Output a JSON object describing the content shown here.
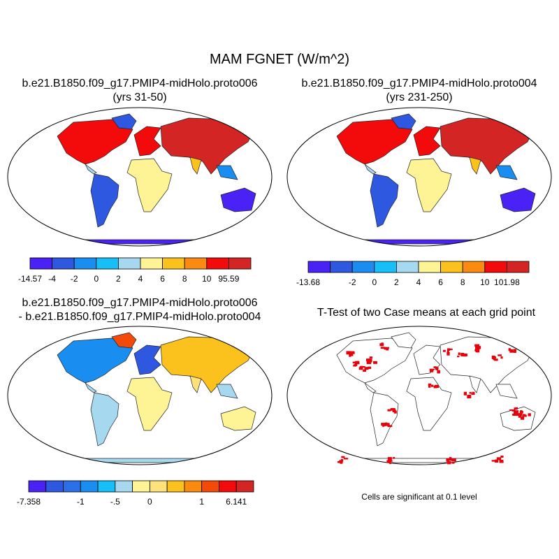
{
  "figure": {
    "title": "MAM FGNET (W/m^2)"
  },
  "panels": [
    {
      "id": "case1",
      "title_line1": "b.e21.B1850.f09_g17.PMIP4-midHolo.proto006",
      "title_line2": "(yrs 31-50)",
      "colorbar": {
        "colors": [
          "#4a22f5",
          "#2e58e0",
          "#1a8ef0",
          "#16bff7",
          "#a6d8f0",
          "#fef496",
          "#fbc21e",
          "#fa8a10",
          "#f30a0a",
          "#d42525"
        ],
        "labels": [
          "-14.57",
          "-4",
          "-2",
          "0",
          "2",
          "4",
          "6",
          "8",
          "10",
          "95.59"
        ]
      }
    },
    {
      "id": "case2",
      "title_line1": "b.e21.B1850.f09_g17.PMIP4-midHolo.proto004",
      "title_line2": "(yrs 231-250)",
      "colorbar": {
        "colors": [
          "#4a22f5",
          "#2e58e0",
          "#1a8ef0",
          "#16bff7",
          "#a6d8f0",
          "#fef496",
          "#fbc21e",
          "#fa8a10",
          "#f30a0a",
          "#d42525"
        ],
        "labels": [
          "-13.68",
          "",
          "-2",
          "0",
          "2",
          "4",
          "6",
          "8",
          "10",
          "101.98"
        ]
      }
    },
    {
      "id": "difference",
      "title_line1": "b.e21.B1850.f09_g17.PMIP4-midHolo.proto006",
      "title_line2": "- b.e21.B1850.f09_g17.PMIP4-midHolo.proto004",
      "colorbar": {
        "colors": [
          "#4a22f5",
          "#2e58e0",
          "#2a6fe8",
          "#1a8ef0",
          "#16bff7",
          "#a6d8f0",
          "#fef496",
          "#fde27a",
          "#fbc21e",
          "#fa8a10",
          "#f34a0a",
          "#f30a0a",
          "#d42525"
        ],
        "labels": [
          "-7.358",
          "",
          "",
          "-1",
          "",
          "-.5",
          "",
          "0",
          "",
          "",
          "1",
          "",
          "6.141"
        ]
      }
    },
    {
      "id": "ttest",
      "title_line1": "T-Test of two Case means at each grid point",
      "note": "Cells are significant at 0.1 level",
      "significant_color": "#e8000a"
    }
  ]
}
